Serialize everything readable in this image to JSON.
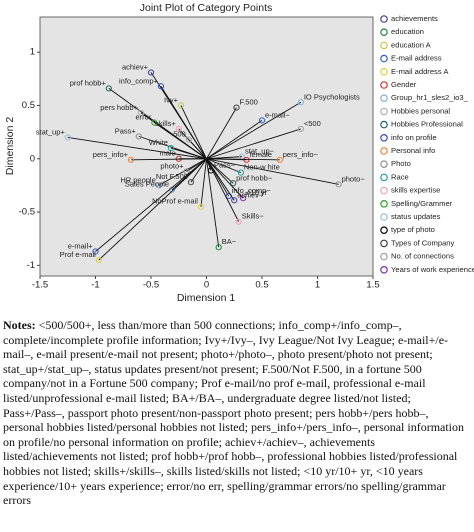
{
  "chart_data": {
    "type": "scatter",
    "title": "Joint Plot of Category Points",
    "x_label": "Dimension 1",
    "y_label": "Dimension 2",
    "xlim": [
      -1.5,
      1.5
    ],
    "ylim": [
      -1.1,
      1.33
    ],
    "xticks": [
      -1.5,
      -1.0,
      -0.5,
      0.0,
      0.5,
      1.0,
      1.5
    ],
    "yticks": [
      -1.0,
      -0.5,
      0.0,
      0.5,
      1.0
    ],
    "background": "#e4e4e4",
    "legend": [
      {
        "name": "achievements",
        "color": "#3c3c9c"
      },
      {
        "name": "education",
        "color": "#1a8a3a"
      },
      {
        "name": "education A",
        "color": "#c8c84a"
      },
      {
        "name": "E-mail address",
        "color": "#2a5fd0"
      },
      {
        "name": "E-mail address A",
        "color": "#e0d040"
      },
      {
        "name": "Gender",
        "color": "#d03030"
      },
      {
        "name": "Group_hr1_sles2_io3_",
        "color": "#80b0e0"
      },
      {
        "name": "Hobbies personal",
        "color": "#b0b0b0"
      },
      {
        "name": "Hobbies Professional",
        "color": "#206060"
      },
      {
        "name": "info on profile",
        "color": "#3050c0"
      },
      {
        "name": "Personal info",
        "color": "#f08030"
      },
      {
        "name": "Photo",
        "color": "#909090"
      },
      {
        "name": "Race",
        "color": "#20a0a0"
      },
      {
        "name": "skills expertise",
        "color": "#f0a0b0"
      },
      {
        "name": "Spelling/Grammer",
        "color": "#30a030"
      },
      {
        "name": "status updates",
        "color": "#90c0e0"
      },
      {
        "name": "type of photo",
        "color": "#000000"
      },
      {
        "name": "Types of Company",
        "color": "#404040"
      },
      {
        "name": "No. of connections",
        "color": "#a0a0a0"
      },
      {
        "name": "Years of work experience",
        "color": "#8030a0"
      }
    ],
    "point_labels": [
      "achiev+",
      "info_comp+",
      "prof hobb+",
      "Ivy+",
      "F.500",
      "IO Psychologists",
      "e-mail−",
      "<500",
      "pers hobb+",
      "error",
      "skills+",
      "stat_up+",
      "Pass+",
      "White",
      "500",
      "male",
      "pers_info+",
      "stat_up−",
      "female",
      "pers_info−",
      "photo−",
      "Non-w hite",
      "HR people",
      "photo+",
      "Pass−",
      "Not F.500",
      "prof hobb−",
      "Sales People",
      "info_comp−",
      "achiev−",
      "<10 yr",
      "Skills−",
      "NoProf e-mail",
      "BA−",
      "e-mail+",
      "Prof e-mail"
    ],
    "x": [
      -0.5,
      -0.41,
      -0.88,
      -0.23,
      0.27,
      0.85,
      0.5,
      0.85,
      -0.59,
      -0.47,
      -0.25,
      -1.25,
      -0.61,
      -0.32,
      -0.16,
      -0.25,
      -0.68,
      0.32,
      0.36,
      0.66,
      1.19,
      0.31,
      -0.43,
      -0.18,
      0.04,
      -0.14,
      0.24,
      -0.31,
      0.2,
      0.25,
      0.33,
      0.29,
      -0.05,
      0.11,
      -1.0,
      -0.97
    ],
    "values": [
      0.81,
      0.68,
      0.66,
      0.5,
      0.48,
      0.53,
      0.36,
      0.28,
      0.43,
      0.34,
      0.28,
      0.2,
      0.21,
      0.1,
      0.18,
      0.0,
      -0.01,
      0.02,
      -0.01,
      -0.01,
      -0.24,
      -0.13,
      -0.25,
      -0.12,
      -0.11,
      -0.22,
      -0.23,
      -0.29,
      -0.35,
      -0.39,
      -0.37,
      -0.59,
      -0.45,
      -0.83,
      -0.87,
      -0.95
    ],
    "colors": [
      "#3c3c9c",
      "#3050c0",
      "#206060",
      "#c8c84a",
      "#404040",
      "#80b0e0",
      "#2a5fd0",
      "#a0a0a0",
      "#b0b0b0",
      "#30a030",
      "#f0a0b0",
      "#90c0e0",
      "#909090",
      "#20a0a0",
      "#a0a0a0",
      "#d03030",
      "#f08030",
      "#90c0e0",
      "#d03030",
      "#f08030",
      "#909090",
      "#20a0a0",
      "#80b0e0",
      "#909090",
      "#000000",
      "#404040",
      "#206060",
      "#80b0e0",
      "#3050c0",
      "#3c3c9c",
      "#8030a0",
      "#f0a0b0",
      "#e0d040",
      "#1a8a3a",
      "#2a5fd0",
      "#e0d040"
    ]
  },
  "notes_label": "Notes:",
  "notes": "<500/500+, less than/more than 500 connections; info_comp+/info_comp–, complete/incomplete profile information; Ivy+/Ivy–, Ivy League/Not Ivy League; e-mail+/e-mail–, e-mail present/e-mail not present; photo+/photo–, photo present/photo not present; stat_up+/stat_up–, status updates present/not present; F.500/Not F.500, in a fortune 500 company/not in a Fortune 500 company; Prof e-mail/no prof e-mail, professional e-mail listed/unprofessional e-mail listed; BA+/BA–, undergraduate degree listed/not listed; Pass+/Pass–, passport photo present/non-passport photo present; pers hobb+/pers hobb–, personal hobbies listed/personal hobbies not listed; pers_info+/pers_info–, personal information on profile/no personal information on profile; achiev+/achiev–, achievements listed/achievements not listed; prof hobb+/prof hobb–, professional hobbies listed/professional hobbies not listed; skills+/skills–, skills listed/skills not listed; <10 yr/10+ yr, <10 years experience/10+ years experience; error/no err, spelling/grammar errors/no spelling/grammar errors"
}
